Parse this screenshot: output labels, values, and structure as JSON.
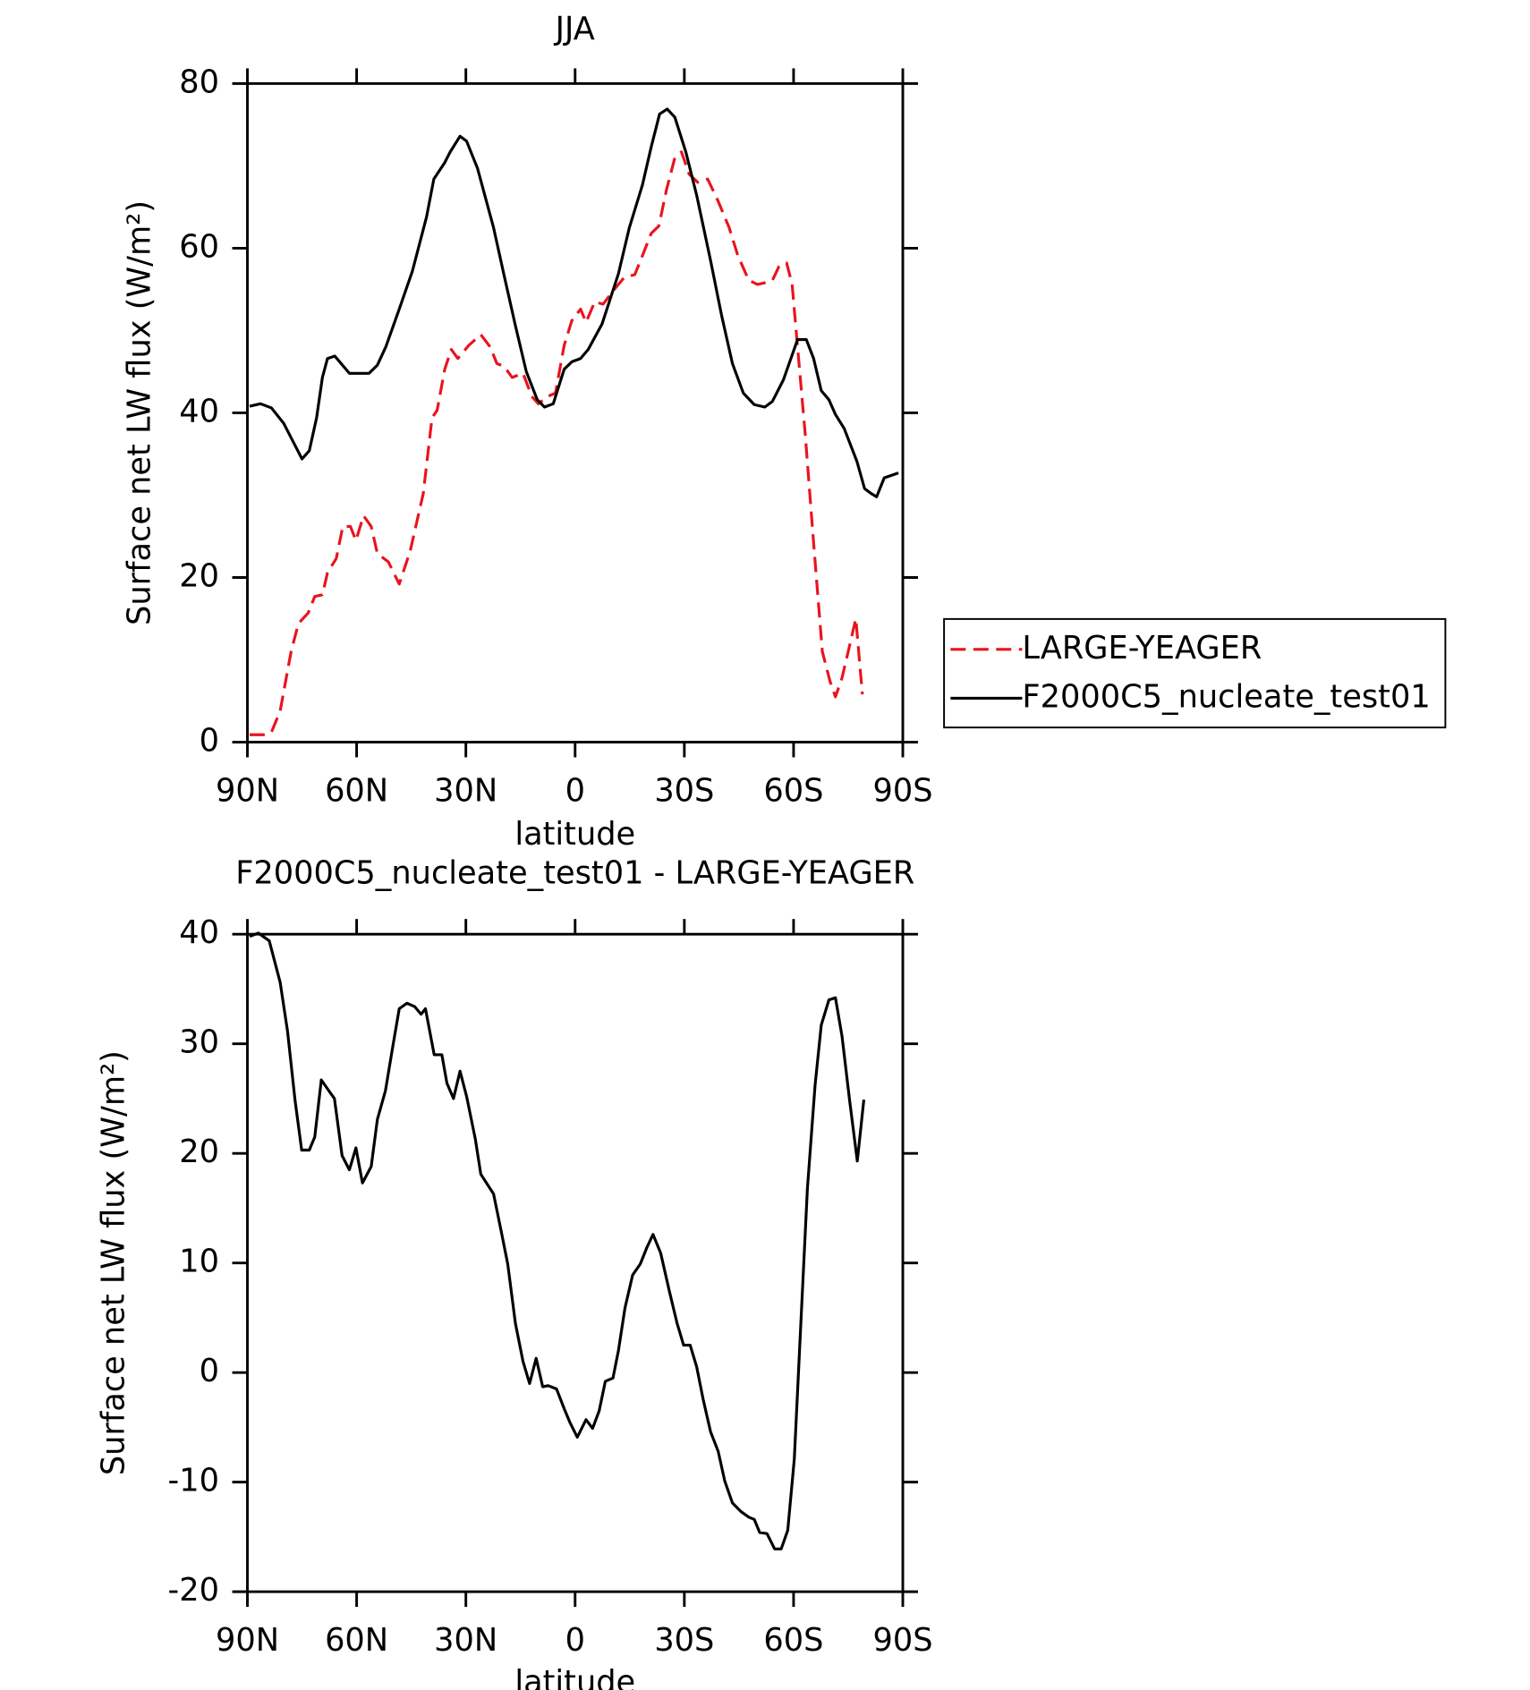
{
  "chart_data": [
    {
      "type": "line",
      "title": "JJA",
      "xlabel": "latitude",
      "ylabel": "Surface net LW flux (W/m²)",
      "xlim": [
        90,
        -90
      ],
      "xticks": [
        {
          "value": 90,
          "label": "90N"
        },
        {
          "value": 60,
          "label": "60N"
        },
        {
          "value": 30,
          "label": "30N"
        },
        0,
        {
          "value": -30,
          "label": "30S"
        },
        {
          "value": -60,
          "label": "60S"
        },
        {
          "value": -90,
          "label": "90S"
        }
      ],
      "ylim": [
        0,
        80
      ],
      "yticks": [
        0,
        20,
        40,
        60,
        80
      ],
      "legend": "right",
      "series": [
        {
          "name": "LARGE-YEAGER",
          "color": "#e8141e",
          "linestyle": "dashed",
          "x": [
            89.4,
            85.5,
            83.4,
            81,
            78,
            76,
            73.3,
            71.5,
            69.4,
            68,
            65.6,
            63.8,
            61.7,
            60.2,
            58.1,
            56,
            54.3,
            51.3,
            48.3,
            45.3,
            41.7,
            39.3,
            37.9,
            35.8,
            34,
            32.2,
            29.2,
            25.9,
            23.3,
            21.5,
            19.4,
            17.3,
            14.3,
            11.9,
            10.1,
            7.5,
            5.4,
            3,
            0.9,
            -1.5,
            -3,
            -5.4,
            -7.7,
            -10.4,
            -13.4,
            -16.4,
            -18.5,
            -20.9,
            -23,
            -25.1,
            -27.4,
            -29.2,
            -31.3,
            -33.7,
            -36.4,
            -39.3,
            -42.3,
            -44.7,
            -47.7,
            -50.1,
            -52.1,
            -54.2,
            -56,
            -58.1,
            -59.6,
            -61.1,
            -63.2,
            -65.5,
            -67.9,
            -70,
            -71.5,
            -73.3,
            -75,
            -77.1,
            -78.9
          ],
          "values": [
            0.9,
            0.9,
            1.2,
            3.8,
            11,
            14.4,
            15.7,
            17.7,
            17.9,
            20.6,
            22.3,
            26.2,
            26.2,
            24.5,
            27.5,
            26.2,
            22.9,
            21.9,
            19.2,
            23.2,
            30.2,
            39.4,
            40.3,
            45.3,
            47.7,
            46.6,
            48.2,
            49.5,
            48,
            46,
            45.6,
            44.3,
            44.8,
            42,
            41.1,
            42,
            42.4,
            48.2,
            51.2,
            52.6,
            51,
            53.5,
            53.2,
            54.8,
            56.4,
            56.8,
            59.1,
            61.8,
            62.7,
            67.1,
            71,
            71.7,
            69,
            68,
            68.4,
            65.7,
            62.5,
            59.1,
            56.1,
            55.6,
            55.8,
            56.1,
            57.8,
            58.2,
            55.6,
            48,
            37.4,
            24.2,
            11,
            7.4,
            5.5,
            7.8,
            11,
            15,
            5.8
          ]
        },
        {
          "name": "F2000C5_nucleate_test01",
          "color": "#000000",
          "linestyle": "solid",
          "x": [
            89.4,
            86.4,
            83.4,
            80,
            75,
            73,
            71,
            69.4,
            68,
            66,
            62,
            56.6,
            54.3,
            52,
            48.3,
            44.7,
            40.8,
            38.8,
            35.8,
            34.3,
            31.6,
            29.8,
            26.8,
            22.4,
            19.4,
            16.4,
            13.4,
            10.4,
            8.4,
            6,
            3,
            0.9,
            -1.5,
            -3.6,
            -7.4,
            -11.9,
            -14.9,
            -18.5,
            -20.9,
            -23.2,
            -25.3,
            -27.4,
            -30.4,
            -33.4,
            -37.2,
            -40.2,
            -43.2,
            -46.2,
            -49.2,
            -52.1,
            -54.2,
            -57.2,
            -61.1,
            -63.5,
            -65.5,
            -67.6,
            -69.7,
            -71.5,
            -73.9,
            -77.4,
            -79.5,
            -81.3,
            -82.8,
            -84.9,
            -88.8
          ],
          "values": [
            40.8,
            41.1,
            40.6,
            38.7,
            34.4,
            35.4,
            39.4,
            44.3,
            46.6,
            46.9,
            44.8,
            44.8,
            45.8,
            48,
            52.6,
            57.2,
            63.8,
            68.4,
            70.4,
            71.7,
            73.6,
            73,
            69.7,
            62.5,
            56.5,
            50.6,
            45,
            41.6,
            40.7,
            41.1,
            45.3,
            46.2,
            46.6,
            47.7,
            50.8,
            56.9,
            62.5,
            67.7,
            72.3,
            76.3,
            76.9,
            75.9,
            71.7,
            66.4,
            58.5,
            51.9,
            46,
            42.4,
            41,
            40.7,
            41.4,
            44,
            48.9,
            48.9,
            46.6,
            42.7,
            41.6,
            39.8,
            38.1,
            34.1,
            30.8,
            30.2,
            29.8,
            32.1,
            32.7
          ]
        }
      ]
    },
    {
      "type": "line",
      "title": "F2000C5_nucleate_test01 - LARGE-YEAGER",
      "xlabel": "latitude",
      "ylabel": "Surface net LW flux (W/m²)",
      "xlim": [
        90,
        -90
      ],
      "xticks": [
        {
          "value": 90,
          "label": "90N"
        },
        {
          "value": 60,
          "label": "60N"
        },
        {
          "value": 30,
          "label": "30N"
        },
        0,
        {
          "value": -30,
          "label": "30S"
        },
        {
          "value": -60,
          "label": "60S"
        },
        {
          "value": -90,
          "label": "90S"
        }
      ],
      "ylim": [
        -20,
        40
      ],
      "yticks": [
        -20,
        -10,
        0,
        10,
        20,
        30,
        40
      ],
      "series": [
        {
          "color": "#000000",
          "linestyle": "solid",
          "x": [
            89.4,
            87,
            84,
            81,
            79,
            76.9,
            75.1,
            73,
            71.5,
            69.7,
            67.6,
            66.1,
            64,
            62,
            60.2,
            58.4,
            56,
            54.3,
            52.1,
            50.1,
            48.3,
            46.2,
            44.1,
            42.3,
            41.1,
            38.7,
            36.6,
            35.2,
            33.4,
            31.6,
            29.8,
            27.4,
            25.9,
            22.4,
            20.3,
            18.5,
            16.4,
            14.3,
            12.5,
            10.7,
            8.9,
            7.4,
            5.1,
            3,
            1.5,
            -0.6,
            -3,
            -4.8,
            -6.6,
            -8.3,
            -10.4,
            -11.9,
            -13.7,
            -15.8,
            -17.9,
            -19.7,
            -21.4,
            -23.5,
            -25.9,
            -28,
            -29.8,
            -31.6,
            -33.4,
            -35.2,
            -37.2,
            -39.3,
            -41.1,
            -43.2,
            -45.6,
            -47.7,
            -49.2,
            -50.7,
            -52.7,
            -54.8,
            -56.6,
            -58.4,
            -60.2,
            -62,
            -63.8,
            -65.9,
            -67.6,
            -69.7,
            -71.5,
            -73.3,
            -75.4,
            -77.5,
            -79.3
          ],
          "values": [
            39.8,
            40.1,
            39.4,
            35.6,
            31.2,
            24.8,
            20.3,
            20.3,
            21.5,
            26.7,
            25.7,
            25,
            19.8,
            18.5,
            20.5,
            17.3,
            18.8,
            23.1,
            25.7,
            29.7,
            33.2,
            33.7,
            33.4,
            32.7,
            33.2,
            29,
            29,
            26.4,
            25,
            27.5,
            25.2,
            21.3,
            18.1,
            16.3,
            12.9,
            9.9,
            4.5,
            1,
            -1,
            1.3,
            -1.3,
            -1.2,
            -1.5,
            -3.3,
            -4.5,
            -5.9,
            -4.3,
            -5.1,
            -3.5,
            -0.8,
            -0.5,
            2,
            5.9,
            8.9,
            9.9,
            11.4,
            12.6,
            10.9,
            7.4,
            4.5,
            2.5,
            2.5,
            0.5,
            -2.5,
            -5.4,
            -7.2,
            -9.9,
            -11.9,
            -12.7,
            -13.2,
            -13.4,
            -14.6,
            -14.7,
            -16.1,
            -16.1,
            -14.4,
            -7.9,
            4.5,
            16.8,
            26.2,
            31.7,
            34,
            34.2,
            30.7,
            24.8,
            19.3,
            24.9
          ]
        }
      ]
    }
  ]
}
